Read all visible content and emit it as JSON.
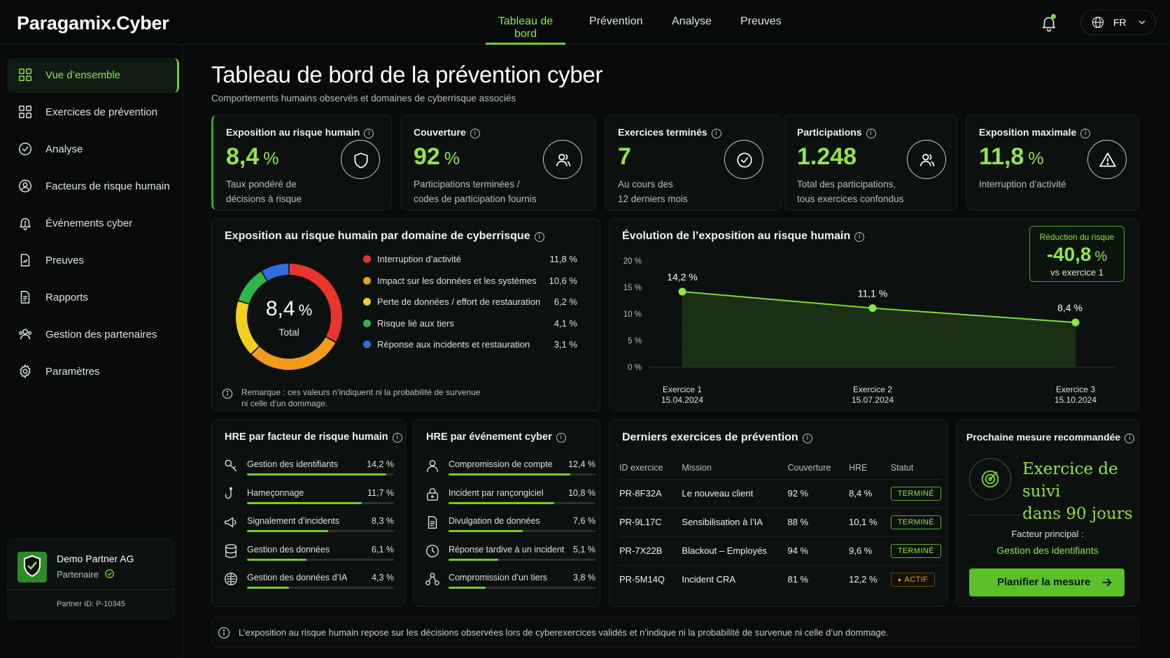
{
  "app": {
    "name": "Paragamix.Cyber"
  },
  "nav": {
    "tabs": [
      {
        "label": "Tableau de bord"
      },
      {
        "label": "Prévention"
      },
      {
        "label": "Analyse"
      },
      {
        "label": "Preuves"
      }
    ],
    "language": "FR"
  },
  "sidebar": {
    "items": [
      {
        "label": "Vue d’ensemble",
        "icon": "grid-icon"
      },
      {
        "label": "Exercices de prévention",
        "icon": "grid-icon"
      },
      {
        "label": "Analyse",
        "icon": "gauge-icon"
      },
      {
        "label": "Facteurs de risque humain",
        "icon": "user-circle-icon"
      },
      {
        "label": "Événements cyber",
        "icon": "alert-bell-icon"
      },
      {
        "label": "Preuves",
        "icon": "document-chart-icon"
      },
      {
        "label": "Rapports",
        "icon": "document-icon"
      },
      {
        "label": "Gestion des partenaires",
        "icon": "users-icon"
      },
      {
        "label": "Paramètres",
        "icon": "gear-icon"
      }
    ],
    "partner": {
      "name": "Demo Partner AG",
      "role": "Partenaire",
      "id": "Partner ID: P-10345"
    }
  },
  "page": {
    "title": "Tableau de bord de la prévention cyber",
    "subtitle": "Comportements humains observés et domaines de cyberrisque associés"
  },
  "kpis": [
    {
      "label": "Exposition au risque humain",
      "value": "8,4",
      "unit": "%",
      "desc1": "Taux pondéré de",
      "desc2": "décisions à risque",
      "icon": "shield-icon"
    },
    {
      "label": "Couverture",
      "value": "92",
      "unit": "%",
      "desc1": "Participations terminées /",
      "desc2": "codes de participation fournis",
      "icon": "users-icon"
    },
    {
      "label": "Exercices terminés",
      "value": "7",
      "unit": "",
      "desc1": "Au cours des",
      "desc2": "12 derniers mois",
      "icon": "check-circle-icon"
    },
    {
      "label": "Participations",
      "value": "1.248",
      "unit": "",
      "desc1": "Total des participations,",
      "desc2": "tous exercices confondus",
      "icon": "users-icon"
    },
    {
      "label": "Exposition maximale",
      "value": "11,8",
      "unit": "%",
      "desc1": "",
      "desc2": "Interruption d’activité",
      "icon": "warning-icon"
    }
  ],
  "donut": {
    "title": "Exposition au risque humain par domaine de cyberrisque",
    "center_value": "8,4",
    "center_unit": "%",
    "center_label": "Total",
    "note1": "Remarque : ces valeurs n’indiquent ni la probabilité de survenue",
    "note2": "ni celle d’un dommage."
  },
  "trend": {
    "title": "Évolution de l’exposition au risque humain",
    "reduction_label": "Réduction du risque",
    "reduction_value": "-40,8",
    "reduction_unit": "%",
    "reduction_sub": "vs exercice 1",
    "x_names": [
      "Exercice 1",
      "Exercice 2",
      "Exercice 3"
    ],
    "x_dates": [
      "15.04.2024",
      "15.07.2024",
      "15.10.2024"
    ]
  },
  "hre_factors": {
    "title": "HRE par facteur de risque humain",
    "rows": [
      {
        "label": "Gestion des identifiants",
        "value": 14.2,
        "text": "14,2 %",
        "icon": "key-icon"
      },
      {
        "label": "Hameçonnage",
        "value": 11.7,
        "text": "11,7 %",
        "icon": "hook-icon"
      },
      {
        "label": "Signalement d’incidents",
        "value": 8.3,
        "text": "8,3 %",
        "icon": "megaphone-icon"
      },
      {
        "label": "Gestion des données",
        "value": 6.1,
        "text": "6,1 %",
        "icon": "database-icon"
      },
      {
        "label": "Gestion des données d’IA",
        "value": 4.3,
        "text": "4,3 %",
        "icon": "ai-brain-icon"
      }
    ]
  },
  "hre_events": {
    "title": "HRE par événement cyber",
    "rows": [
      {
        "label": "Compromission de compte",
        "value": 12.4,
        "text": "12,4 %",
        "icon": "user-icon"
      },
      {
        "label": "Incident par rançongiciel",
        "value": 10.8,
        "text": "10,8 %",
        "icon": "lock-icon"
      },
      {
        "label": "Divulgation de données",
        "value": 7.6,
        "text": "7,6 %",
        "icon": "document-icon"
      },
      {
        "label": "Réponse tardive à un incident",
        "value": 5.1,
        "text": "5,1 %",
        "icon": "clock-icon"
      },
      {
        "label": "Compromission d’un tiers",
        "value": 3.8,
        "text": "3,8 %",
        "icon": "network-icon"
      }
    ]
  },
  "exercises": {
    "title": "Derniers exercices de prévention",
    "headers": [
      "ID exercice",
      "Mission",
      "Couverture",
      "HRE",
      "Statut"
    ],
    "rows": [
      {
        "id": "PR-8F32A",
        "mission": "Le nouveau client",
        "coverage": "92 %",
        "hre": "8,4 %",
        "status": "TERMINÉ",
        "state": "done"
      },
      {
        "id": "PR-9L17C",
        "mission": "Sensibilisation à l’IA",
        "coverage": "88 %",
        "hre": "10,1 %",
        "status": "TERMINÉ",
        "state": "done"
      },
      {
        "id": "PR-7X22B",
        "mission": "Blackout – Employés",
        "coverage": "94 %",
        "hre": "9,6 %",
        "status": "TERMINÉ",
        "state": "done"
      },
      {
        "id": "PR-5M14Q",
        "mission": "Incident CRA",
        "coverage": "81 %",
        "hre": "12,2 %",
        "status": "ACTIF",
        "state": "active"
      }
    ]
  },
  "recommendation": {
    "title": "Prochaine mesure recommandée",
    "headline1": "Exercice de suivi",
    "headline2": "dans 90 jours",
    "factor_label": "Facteur principal :",
    "factor_value": "Gestion des identifiants",
    "button": "Planifier la mesure"
  },
  "footer_note": "L’exposition au risque humain repose sur les décisions observées lors de cyberexercices validés et n’indique ni la probabilité de survenue ni celle d’un dommage.",
  "colors": {
    "accent": "#8fe64a",
    "accent_strong": "#6fcf2c",
    "background": "#07090a",
    "card": "#0c100e"
  },
  "chart_data": [
    {
      "type": "pie",
      "title": "Exposition au risque humain par domaine de cyberrisque",
      "categories": [
        "Interruption d’activité",
        "Impact sur les données et les systèmes",
        "Perte de données / effort de restauration",
        "Risque lié aux tiers",
        "Réponse aux incidents et restauration"
      ],
      "values": [
        11.8,
        10.6,
        6.2,
        4.1,
        3.1
      ],
      "labels": [
        "11,8 %",
        "10,6 %",
        "6,2 %",
        "4,1 %",
        "3,1 %"
      ],
      "colors": [
        "#e8362d",
        "#f29a1b",
        "#f2cf1c",
        "#2fb44a",
        "#2f6fe0"
      ]
    },
    {
      "type": "area",
      "title": "Évolution de l’exposition au risque humain",
      "categories": [
        "Exercice 1",
        "Exercice 2",
        "Exercice 3"
      ],
      "values": [
        14.2,
        11.1,
        8.4
      ],
      "labels": [
        "14,2 %",
        "11,1 %",
        "8,4 %"
      ],
      "ylim": [
        0,
        20
      ],
      "yticks": [
        0,
        5,
        10,
        15,
        20
      ],
      "ytick_labels": [
        "0 %",
        "5 %",
        "10 %",
        "15 %",
        "20 %"
      ],
      "grid": false
    },
    {
      "type": "bar",
      "title": "HRE par facteur de risque humain",
      "categories": [
        "Gestion des identifiants",
        "Hameçonnage",
        "Signalement d’incidents",
        "Gestion des données",
        "Gestion des données d’IA"
      ],
      "values": [
        14.2,
        11.7,
        8.3,
        6.1,
        4.3
      ]
    },
    {
      "type": "bar",
      "title": "HRE par événement cyber",
      "categories": [
        "Compromission de compte",
        "Incident par rançongiciel",
        "Divulgation de données",
        "Réponse tardive à un incident",
        "Compromission d’un tiers"
      ],
      "values": [
        12.4,
        10.8,
        7.6,
        5.1,
        3.8
      ]
    }
  ]
}
